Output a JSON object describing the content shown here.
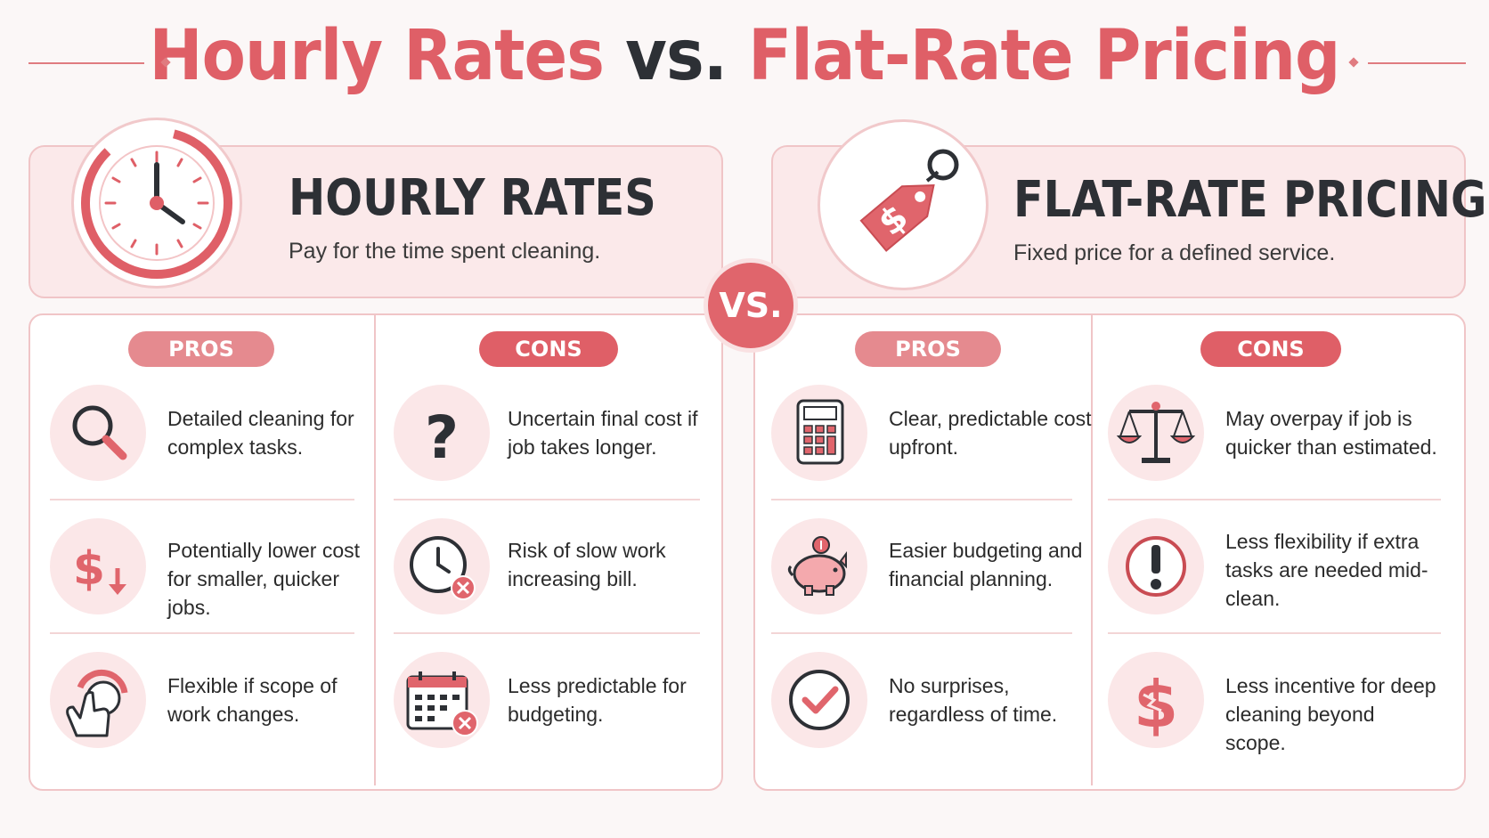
{
  "title": {
    "part1": "Hourly Rates",
    "vs": "vs.",
    "part2": "Flat-Rate Pricing"
  },
  "vs_badge": "VS.",
  "colors": {
    "accent": "#df5f67",
    "soft": "#fbe9ea",
    "dark": "#2d3035"
  },
  "hourly": {
    "heading": "HOURLY RATES",
    "subtitle": "Pay for the time spent cleaning.",
    "icon": "clock-icon",
    "pros_label": "PROS",
    "cons_label": "CONS",
    "pros": [
      {
        "icon": "magnifier-icon",
        "text": "Detailed cleaning for complex tasks."
      },
      {
        "icon": "dollar-down-icon",
        "text": "Potentially lower cost for smaller, quicker jobs."
      },
      {
        "icon": "hand-dial-icon",
        "text": "Flexible if scope of work changes."
      }
    ],
    "cons": [
      {
        "icon": "question-icon",
        "text": "Uncertain final cost if job takes longer."
      },
      {
        "icon": "clock-x-icon",
        "text": "Risk of slow work increasing bill."
      },
      {
        "icon": "calendar-x-icon",
        "text": "Less predictable for budgeting."
      }
    ]
  },
  "flat": {
    "heading": "FLAT-RATE PRICING",
    "subtitle": "Fixed price for a defined service.",
    "icon": "price-tag-icon",
    "pros_label": "PROS",
    "cons_label": "CONS",
    "pros": [
      {
        "icon": "calculator-icon",
        "text": "Clear, predictable cost upfront."
      },
      {
        "icon": "piggy-bank-icon",
        "text": "Easier budgeting and financial planning."
      },
      {
        "icon": "checkmark-icon",
        "text": "No surprises, regardless of time."
      }
    ],
    "cons": [
      {
        "icon": "scales-icon",
        "text": "May overpay if job is quicker than estimated."
      },
      {
        "icon": "exclamation-icon",
        "text": "Less flexibility if extra tasks are needed mid-clean."
      },
      {
        "icon": "broken-dollar-icon",
        "text": "Less incentive for deep cleaning beyond scope."
      }
    ]
  }
}
